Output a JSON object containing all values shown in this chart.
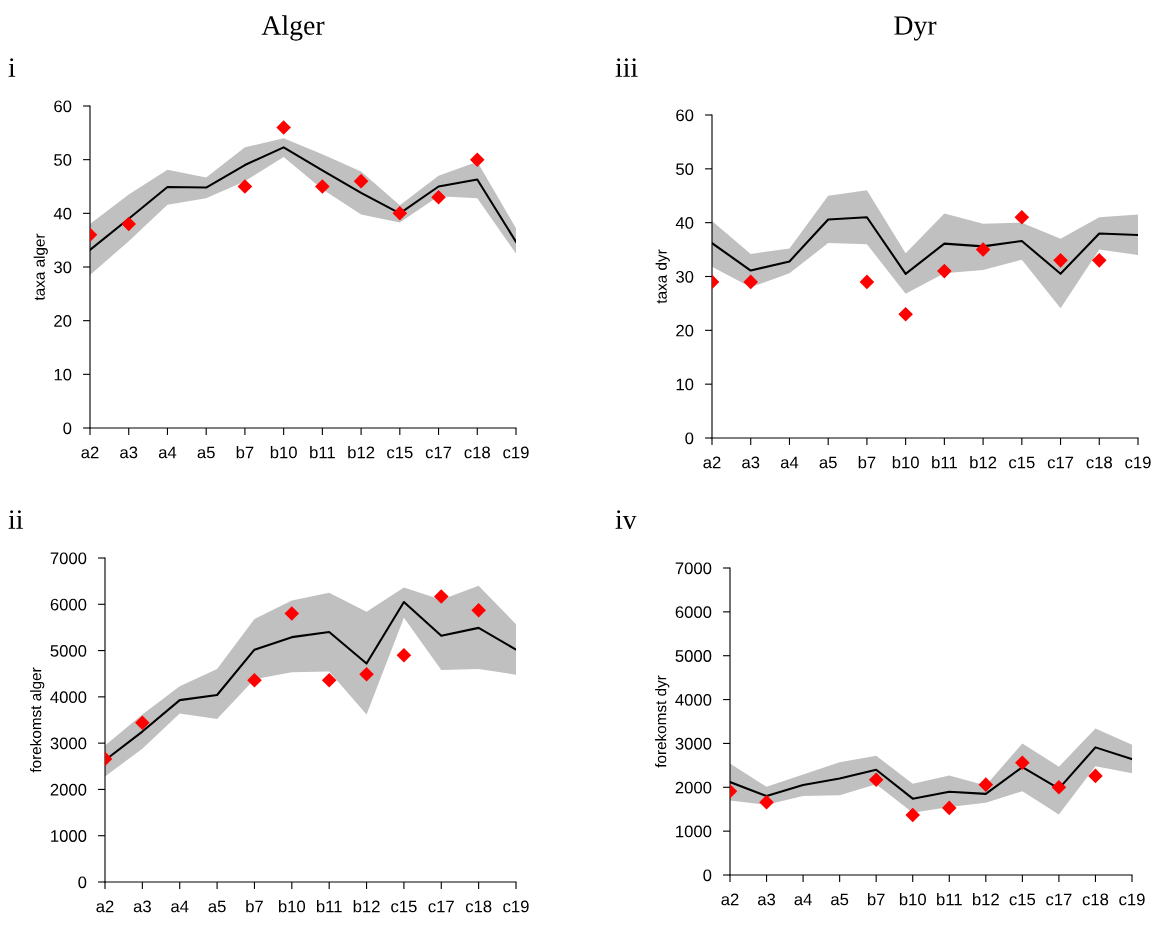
{
  "chart_data": [
    {
      "type": "line",
      "title": "Alger",
      "subtitle": "i",
      "ylabel": "taxa alger",
      "categories": [
        "a2",
        "a3",
        "a4",
        "a5",
        "b7",
        "b10",
        "b11",
        "b12",
        "c15",
        "c17",
        "c18",
        "c19"
      ],
      "ylim": [
        0,
        60
      ],
      "yticks": [
        0,
        10,
        20,
        30,
        40,
        50,
        60
      ],
      "series": [
        {
          "color": "#000000",
          "marker": "none",
          "values": [
            33.2,
            39,
            44.9,
            44.8,
            49,
            52.3,
            48,
            43.8,
            40,
            45,
            46.3,
            34.7
          ],
          "lower": [
            28.5,
            34.8,
            41.6,
            42.8,
            46,
            50.5,
            44.5,
            39.8,
            38.3,
            43.2,
            42.8,
            32.5
          ],
          "upper": [
            38,
            43.5,
            48.1,
            46.7,
            52.3,
            54,
            51,
            47.8,
            41.5,
            47,
            49.6,
            37.2
          ]
        },
        {
          "type": "scatter",
          "color": "#ff0000",
          "marker": "diamond",
          "values": [
            36,
            38,
            null,
            null,
            45,
            56,
            45,
            46,
            40,
            43,
            50,
            null
          ]
        }
      ]
    },
    {
      "type": "line",
      "title": "Dyr",
      "subtitle": "iii",
      "ylabel": "taxa dyr",
      "categories": [
        "a2",
        "a3",
        "a4",
        "a5",
        "b7",
        "b10",
        "b11",
        "b12",
        "c15",
        "c17",
        "c18",
        "c19"
      ],
      "ylim": [
        0,
        60
      ],
      "yticks": [
        0,
        10,
        20,
        30,
        40,
        50,
        60
      ],
      "series": [
        {
          "color": "#000000",
          "marker": "none",
          "values": [
            36.2,
            31.1,
            32.8,
            40.6,
            41,
            30.5,
            36.1,
            35.6,
            36.6,
            30.5,
            38,
            37.7
          ],
          "lower": [
            31.8,
            28,
            30.6,
            36.2,
            36,
            26.8,
            30.6,
            31.2,
            33.1,
            24.1,
            35,
            34
          ],
          "upper": [
            40.3,
            34.2,
            35.2,
            45,
            46,
            34.3,
            41.7,
            39.8,
            40,
            37,
            41,
            41.5
          ]
        },
        {
          "type": "scatter",
          "color": "#ff0000",
          "marker": "diamond",
          "values": [
            29,
            29,
            null,
            null,
            29,
            23,
            31,
            35,
            41,
            33,
            33,
            null
          ]
        }
      ]
    },
    {
      "type": "line",
      "subtitle": "ii",
      "ylabel": "forekomst alger",
      "categories": [
        "a2",
        "a3",
        "a4",
        "a5",
        "b7",
        "b10",
        "b11",
        "b12",
        "c15",
        "c17",
        "c18",
        "c19"
      ],
      "ylim": [
        0,
        7000
      ],
      "yticks": [
        0,
        1000,
        2000,
        3000,
        4000,
        5000,
        6000,
        7000
      ],
      "series": [
        {
          "color": "#000000",
          "marker": "none",
          "values": [
            2630,
            3250,
            3930,
            4040,
            5020,
            5290,
            5400,
            4720,
            6050,
            5320,
            5490,
            5020
          ],
          "lower": [
            2280,
            2880,
            3640,
            3520,
            4380,
            4530,
            4550,
            3620,
            5710,
            4580,
            4600,
            4480
          ],
          "upper": [
            2950,
            3620,
            4230,
            4600,
            5680,
            6080,
            6250,
            5840,
            6360,
            6100,
            6400,
            5570
          ]
        },
        {
          "type": "scatter",
          "color": "#ff0000",
          "marker": "diamond",
          "values": [
            2660,
            3440,
            null,
            null,
            4360,
            5800,
            4360,
            4490,
            4900,
            6170,
            5870,
            null
          ]
        }
      ]
    },
    {
      "type": "line",
      "subtitle": "iv",
      "ylabel": "forekomst dyr",
      "categories": [
        "a2",
        "a3",
        "a4",
        "a5",
        "b7",
        "b10",
        "b11",
        "b12",
        "c15",
        "c17",
        "c18",
        "c19"
      ],
      "ylim": [
        0,
        7000
      ],
      "yticks": [
        0,
        1000,
        2000,
        3000,
        4000,
        5000,
        6000,
        7000
      ],
      "series": [
        {
          "color": "#000000",
          "marker": "none",
          "values": [
            2120,
            1800,
            2050,
            2200,
            2400,
            1740,
            1900,
            1850,
            2460,
            1970,
            2910,
            2640
          ],
          "lower": [
            1700,
            1600,
            1800,
            1820,
            2070,
            1420,
            1550,
            1650,
            1910,
            1380,
            2480,
            2320
          ],
          "upper": [
            2540,
            2010,
            2290,
            2570,
            2720,
            2080,
            2270,
            2040,
            3000,
            2470,
            3340,
            2970
          ]
        },
        {
          "type": "scatter",
          "color": "#ff0000",
          "marker": "diamond",
          "values": [
            1910,
            1660,
            null,
            null,
            2170,
            1370,
            1530,
            2060,
            2560,
            2000,
            2260,
            null
          ]
        }
      ]
    }
  ]
}
